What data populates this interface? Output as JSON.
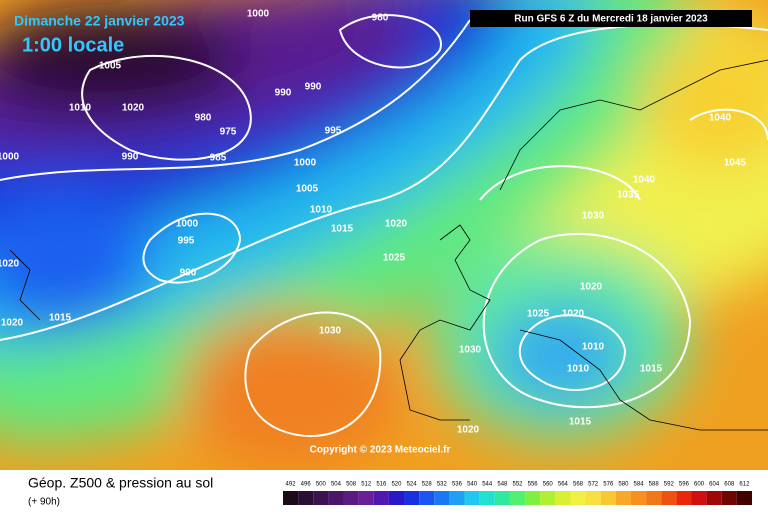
{
  "header": {
    "date": "Dimanche 22 janvier 2023",
    "time": "1:00 locale",
    "run": "Run GFS 6 Z du Mercredi 18 janvier 2023",
    "copyright": "Copyright © 2023 Meteociel.fr"
  },
  "footer": {
    "title": "Géop. Z500 & pression au sol",
    "lead": "(+ 90h)"
  },
  "isobar_labels": [
    1000,
    980,
    1005,
    1010,
    1020,
    980,
    975,
    985,
    990,
    990,
    995,
    1000,
    1005,
    1010,
    1015,
    1000,
    1020,
    1025,
    1000,
    995,
    990,
    1020,
    1015,
    1020,
    1030,
    1030,
    1020,
    1015,
    1010,
    1015,
    1010,
    1020,
    1025,
    1020,
    1030,
    1035,
    1040,
    1040,
    1045,
    990
  ],
  "scale": {
    "values": [
      492,
      496,
      500,
      504,
      508,
      512,
      516,
      520,
      524,
      528,
      532,
      536,
      540,
      544,
      548,
      552,
      556,
      560,
      564,
      568,
      572,
      576,
      580,
      584,
      588,
      592,
      596,
      600,
      604,
      608,
      612
    ],
    "colors": [
      "#1a0a1a",
      "#2a0f35",
      "#3c1250",
      "#4a1768",
      "#5a1c80",
      "#6a1f99",
      "#5018b0",
      "#2a18c8",
      "#1830e0",
      "#1a55f0",
      "#1a78f5",
      "#20a0f5",
      "#20c8f0",
      "#20e0d0",
      "#30e8a0",
      "#50f070",
      "#80f040",
      "#b0f030",
      "#d8f030",
      "#f0f040",
      "#f8e040",
      "#f8c830",
      "#f8a828",
      "#f89020",
      "#f07818",
      "#f05010",
      "#e82808",
      "#d01010",
      "#a00808",
      "#700404",
      "#400000"
    ]
  }
}
